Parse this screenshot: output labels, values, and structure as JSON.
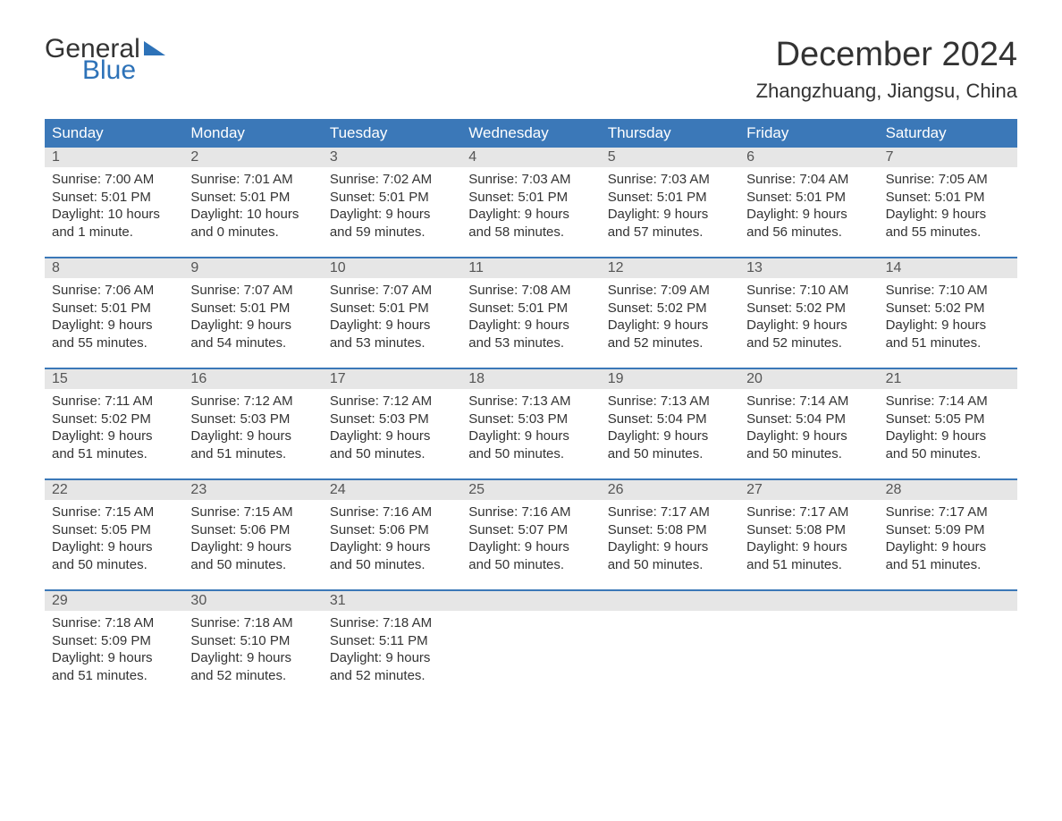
{
  "logo": {
    "word1": "General",
    "word2": "Blue"
  },
  "title": "December 2024",
  "location": "Zhangzhuang, Jiangsu, China",
  "colors": {
    "header_bg": "#3b78b8",
    "header_text": "#ffffff",
    "daynum_bg": "#e6e6e6",
    "daynum_text": "#555555",
    "body_text": "#333333",
    "accent": "#2d72b8",
    "page_bg": "#ffffff",
    "week_border": "#3b78b8"
  },
  "typography": {
    "title_fontsize": 38,
    "location_fontsize": 22,
    "dayheader_fontsize": 17,
    "daynum_fontsize": 16,
    "cell_fontsize": 15,
    "logo_fontsize": 30
  },
  "layout": {
    "columns": 7,
    "rows": 5,
    "type": "table"
  },
  "day_names": [
    "Sunday",
    "Monday",
    "Tuesday",
    "Wednesday",
    "Thursday",
    "Friday",
    "Saturday"
  ],
  "weeks": [
    [
      {
        "n": "1",
        "sunrise": "Sunrise: 7:00 AM",
        "sunset": "Sunset: 5:01 PM",
        "day1": "Daylight: 10 hours",
        "day2": "and 1 minute."
      },
      {
        "n": "2",
        "sunrise": "Sunrise: 7:01 AM",
        "sunset": "Sunset: 5:01 PM",
        "day1": "Daylight: 10 hours",
        "day2": "and 0 minutes."
      },
      {
        "n": "3",
        "sunrise": "Sunrise: 7:02 AM",
        "sunset": "Sunset: 5:01 PM",
        "day1": "Daylight: 9 hours",
        "day2": "and 59 minutes."
      },
      {
        "n": "4",
        "sunrise": "Sunrise: 7:03 AM",
        "sunset": "Sunset: 5:01 PM",
        "day1": "Daylight: 9 hours",
        "day2": "and 58 minutes."
      },
      {
        "n": "5",
        "sunrise": "Sunrise: 7:03 AM",
        "sunset": "Sunset: 5:01 PM",
        "day1": "Daylight: 9 hours",
        "day2": "and 57 minutes."
      },
      {
        "n": "6",
        "sunrise": "Sunrise: 7:04 AM",
        "sunset": "Sunset: 5:01 PM",
        "day1": "Daylight: 9 hours",
        "day2": "and 56 minutes."
      },
      {
        "n": "7",
        "sunrise": "Sunrise: 7:05 AM",
        "sunset": "Sunset: 5:01 PM",
        "day1": "Daylight: 9 hours",
        "day2": "and 55 minutes."
      }
    ],
    [
      {
        "n": "8",
        "sunrise": "Sunrise: 7:06 AM",
        "sunset": "Sunset: 5:01 PM",
        "day1": "Daylight: 9 hours",
        "day2": "and 55 minutes."
      },
      {
        "n": "9",
        "sunrise": "Sunrise: 7:07 AM",
        "sunset": "Sunset: 5:01 PM",
        "day1": "Daylight: 9 hours",
        "day2": "and 54 minutes."
      },
      {
        "n": "10",
        "sunrise": "Sunrise: 7:07 AM",
        "sunset": "Sunset: 5:01 PM",
        "day1": "Daylight: 9 hours",
        "day2": "and 53 minutes."
      },
      {
        "n": "11",
        "sunrise": "Sunrise: 7:08 AM",
        "sunset": "Sunset: 5:01 PM",
        "day1": "Daylight: 9 hours",
        "day2": "and 53 minutes."
      },
      {
        "n": "12",
        "sunrise": "Sunrise: 7:09 AM",
        "sunset": "Sunset: 5:02 PM",
        "day1": "Daylight: 9 hours",
        "day2": "and 52 minutes."
      },
      {
        "n": "13",
        "sunrise": "Sunrise: 7:10 AM",
        "sunset": "Sunset: 5:02 PM",
        "day1": "Daylight: 9 hours",
        "day2": "and 52 minutes."
      },
      {
        "n": "14",
        "sunrise": "Sunrise: 7:10 AM",
        "sunset": "Sunset: 5:02 PM",
        "day1": "Daylight: 9 hours",
        "day2": "and 51 minutes."
      }
    ],
    [
      {
        "n": "15",
        "sunrise": "Sunrise: 7:11 AM",
        "sunset": "Sunset: 5:02 PM",
        "day1": "Daylight: 9 hours",
        "day2": "and 51 minutes."
      },
      {
        "n": "16",
        "sunrise": "Sunrise: 7:12 AM",
        "sunset": "Sunset: 5:03 PM",
        "day1": "Daylight: 9 hours",
        "day2": "and 51 minutes."
      },
      {
        "n": "17",
        "sunrise": "Sunrise: 7:12 AM",
        "sunset": "Sunset: 5:03 PM",
        "day1": "Daylight: 9 hours",
        "day2": "and 50 minutes."
      },
      {
        "n": "18",
        "sunrise": "Sunrise: 7:13 AM",
        "sunset": "Sunset: 5:03 PM",
        "day1": "Daylight: 9 hours",
        "day2": "and 50 minutes."
      },
      {
        "n": "19",
        "sunrise": "Sunrise: 7:13 AM",
        "sunset": "Sunset: 5:04 PM",
        "day1": "Daylight: 9 hours",
        "day2": "and 50 minutes."
      },
      {
        "n": "20",
        "sunrise": "Sunrise: 7:14 AM",
        "sunset": "Sunset: 5:04 PM",
        "day1": "Daylight: 9 hours",
        "day2": "and 50 minutes."
      },
      {
        "n": "21",
        "sunrise": "Sunrise: 7:14 AM",
        "sunset": "Sunset: 5:05 PM",
        "day1": "Daylight: 9 hours",
        "day2": "and 50 minutes."
      }
    ],
    [
      {
        "n": "22",
        "sunrise": "Sunrise: 7:15 AM",
        "sunset": "Sunset: 5:05 PM",
        "day1": "Daylight: 9 hours",
        "day2": "and 50 minutes."
      },
      {
        "n": "23",
        "sunrise": "Sunrise: 7:15 AM",
        "sunset": "Sunset: 5:06 PM",
        "day1": "Daylight: 9 hours",
        "day2": "and 50 minutes."
      },
      {
        "n": "24",
        "sunrise": "Sunrise: 7:16 AM",
        "sunset": "Sunset: 5:06 PM",
        "day1": "Daylight: 9 hours",
        "day2": "and 50 minutes."
      },
      {
        "n": "25",
        "sunrise": "Sunrise: 7:16 AM",
        "sunset": "Sunset: 5:07 PM",
        "day1": "Daylight: 9 hours",
        "day2": "and 50 minutes."
      },
      {
        "n": "26",
        "sunrise": "Sunrise: 7:17 AM",
        "sunset": "Sunset: 5:08 PM",
        "day1": "Daylight: 9 hours",
        "day2": "and 50 minutes."
      },
      {
        "n": "27",
        "sunrise": "Sunrise: 7:17 AM",
        "sunset": "Sunset: 5:08 PM",
        "day1": "Daylight: 9 hours",
        "day2": "and 51 minutes."
      },
      {
        "n": "28",
        "sunrise": "Sunrise: 7:17 AM",
        "sunset": "Sunset: 5:09 PM",
        "day1": "Daylight: 9 hours",
        "day2": "and 51 minutes."
      }
    ],
    [
      {
        "n": "29",
        "sunrise": "Sunrise: 7:18 AM",
        "sunset": "Sunset: 5:09 PM",
        "day1": "Daylight: 9 hours",
        "day2": "and 51 minutes."
      },
      {
        "n": "30",
        "sunrise": "Sunrise: 7:18 AM",
        "sunset": "Sunset: 5:10 PM",
        "day1": "Daylight: 9 hours",
        "day2": "and 52 minutes."
      },
      {
        "n": "31",
        "sunrise": "Sunrise: 7:18 AM",
        "sunset": "Sunset: 5:11 PM",
        "day1": "Daylight: 9 hours",
        "day2": "and 52 minutes."
      },
      null,
      null,
      null,
      null
    ]
  ]
}
